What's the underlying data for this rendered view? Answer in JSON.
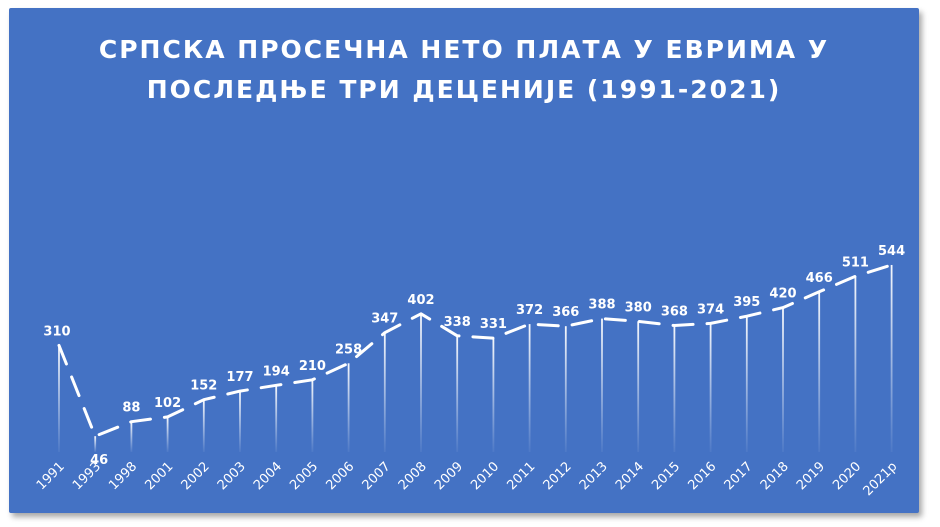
{
  "chart_data": {
    "type": "line",
    "title_line1": "СРПСКА ПРОСЕЧНА НЕТО ПЛАТА У ЕВРИМА У",
    "title_line2": "ПОСЛЕДЊЕ ТРИ ДЕЦЕНИЈЕ (1991-2021)",
    "categories": [
      "1991",
      "1993",
      "1998",
      "2001",
      "2002",
      "2003",
      "2004",
      "2005",
      "2006",
      "2007",
      "2008",
      "2009",
      "2010",
      "2011",
      "2012",
      "2013",
      "2014",
      "2015",
      "2016",
      "2017",
      "2018",
      "2019",
      "2020",
      "2021р"
    ],
    "values": [
      310,
      46,
      88,
      102,
      152,
      177,
      194,
      210,
      258,
      347,
      402,
      338,
      331,
      372,
      366,
      388,
      380,
      368,
      374,
      395,
      420,
      466,
      511,
      544
    ],
    "grid": false,
    "legend": "none",
    "colors": {
      "background": "#4472c4",
      "line": "#ffffff",
      "text": "#ffffff"
    }
  }
}
